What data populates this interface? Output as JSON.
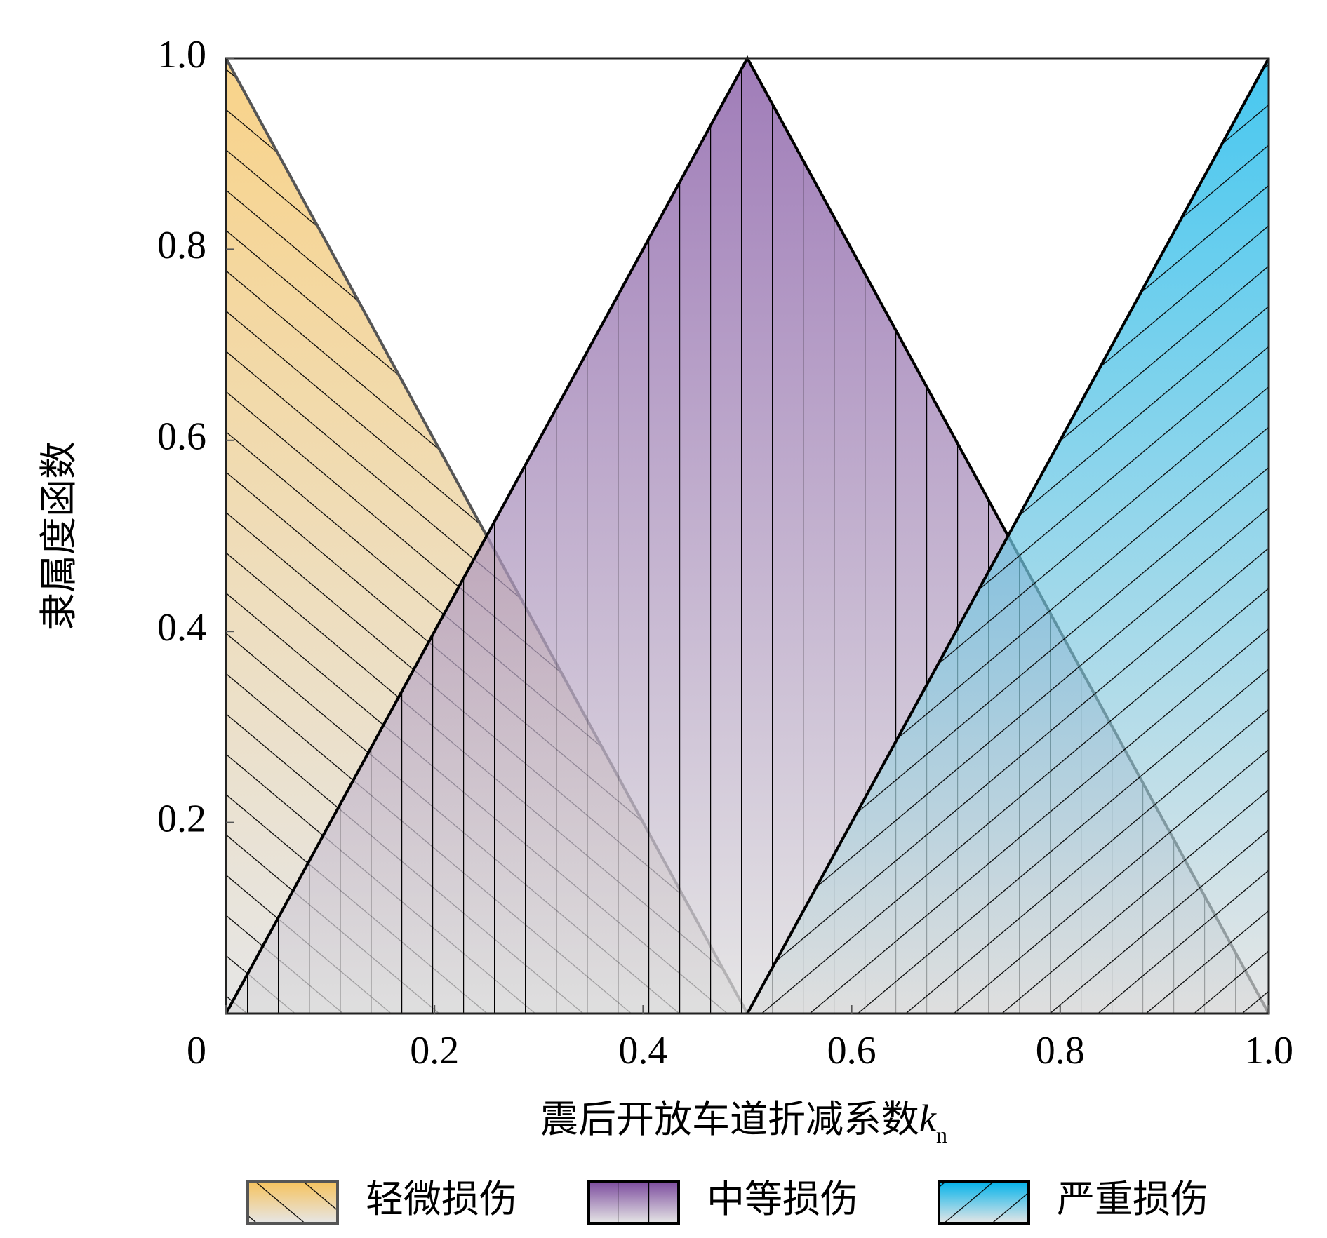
{
  "chart_data": {
    "type": "area",
    "xlabel": "震后开放车道折减系数",
    "xlabel_var": "k",
    "xlabel_sub": "n",
    "ylabel": "隶属度函数",
    "x": [
      0,
      0.5,
      1
    ],
    "series": [
      {
        "name": "轻微损伤",
        "color": "#f6c25c",
        "hatch": "backslash",
        "values": [
          1,
          0,
          null
        ]
      },
      {
        "name": "中等损伤",
        "color": "#7b4a9d",
        "hatch": "vertical",
        "values": [
          0,
          1,
          0
        ]
      },
      {
        "name": "严重损伤",
        "color": "#00b2ea",
        "hatch": "slash",
        "values": [
          null,
          0,
          1
        ]
      }
    ],
    "xlim": [
      0,
      1
    ],
    "xticks": [
      0,
      0.2,
      0.4,
      0.6,
      0.8,
      {
        "value": 1,
        "label": "1.0"
      }
    ],
    "ylim": [
      0,
      1
    ],
    "yticks": [
      0.2,
      0.4,
      0.6,
      0.8,
      {
        "value": 1,
        "label": "1.0"
      }
    ]
  }
}
